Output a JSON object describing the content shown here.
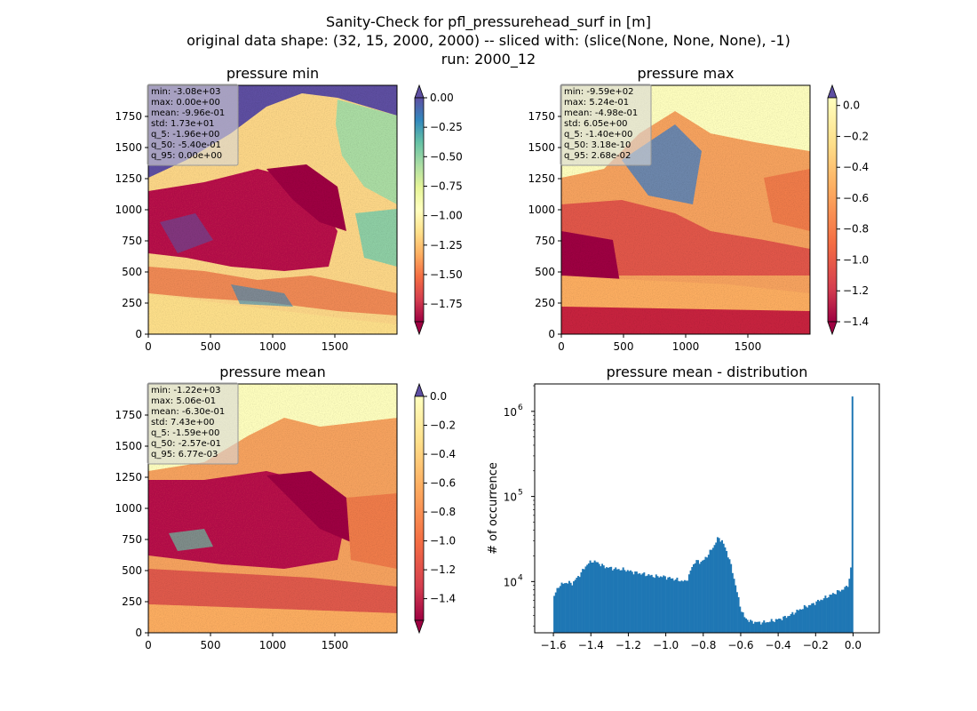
{
  "figure": {
    "title_lines": [
      "Sanity-Check for pfl_pressurehead_surf in [m]",
      "original data shape: (32, 15, 2000, 2000) -- sliced with: (slice(None, None, None), -1)",
      "run: 2000_12"
    ]
  },
  "chart_data": [
    {
      "type": "heatmap",
      "title": "pressure min",
      "x_ticks": [
        0,
        500,
        1000,
        1500
      ],
      "y_ticks": [
        0,
        250,
        500,
        750,
        1000,
        1250,
        1500,
        1750
      ],
      "xlim": [
        0,
        2000
      ],
      "ylim": [
        0,
        2000
      ],
      "colormap": "Spectral",
      "colorbar": {
        "range": [
          -1.9,
          0.0
        ],
        "ticks": [
          "0.00",
          "−0.25",
          "−0.50",
          "−0.75",
          "−1.00",
          "−1.25",
          "−1.50",
          "−1.75"
        ],
        "extend": "both"
      },
      "stats": [
        "min: -3.08e+03",
        "max: 0.00e+00",
        "mean: -9.96e-01",
        "std: 1.73e+01",
        "q_5: -1.96e+00",
        "q_50: -5.40e-01",
        "q_95: 0.00e+00"
      ]
    },
    {
      "type": "heatmap",
      "title": "pressure max",
      "x_ticks": [
        0,
        500,
        1000,
        1500
      ],
      "y_ticks": [
        0,
        250,
        500,
        750,
        1000,
        1250,
        1500,
        1750
      ],
      "xlim": [
        0,
        2000
      ],
      "ylim": [
        0,
        2000
      ],
      "colormap": "Spectral",
      "colorbar": {
        "range": [
          -1.4,
          0.05
        ],
        "ticks": [
          "0.0",
          "−0.2",
          "−0.4",
          "−0.6",
          "−0.8",
          "−1.0",
          "−1.2",
          "−1.4"
        ],
        "extend": "both"
      },
      "stats": [
        "min: -9.59e+02",
        "max: 5.24e-01",
        "mean: -4.98e-01",
        "std: 6.05e+00",
        "q_5: -1.40e+00",
        "q_50: 3.18e-10",
        "q_95: 2.68e-02"
      ]
    },
    {
      "type": "heatmap",
      "title": "pressure mean",
      "x_ticks": [
        0,
        500,
        1000,
        1500
      ],
      "y_ticks": [
        0,
        250,
        500,
        750,
        1000,
        1250,
        1500,
        1750
      ],
      "xlim": [
        0,
        2000
      ],
      "ylim": [
        0,
        2000
      ],
      "colormap": "Spectral",
      "colorbar": {
        "range": [
          -1.55,
          0.0
        ],
        "ticks": [
          "0.0",
          "−0.2",
          "−0.4",
          "−0.6",
          "−0.8",
          "−1.0",
          "−1.2",
          "−1.4"
        ],
        "extend": "both"
      },
      "stats": [
        "min: -1.22e+03",
        "max: 5.06e-01",
        "mean: -6.30e-01",
        "std: 7.43e+00",
        "q_5: -1.59e+00",
        "q_50: -2.57e-01",
        "q_95: 6.77e-03"
      ]
    },
    {
      "type": "bar",
      "title": "pressure mean - distribution",
      "ylabel": "# of occurrence",
      "y_scale": "log",
      "x_ticks": [
        "−1.6",
        "−1.4",
        "−1.2",
        "−1.0",
        "−0.8",
        "−0.6",
        "−0.4",
        "−0.2",
        "0.0"
      ],
      "x_tick_values": [
        -1.6,
        -1.4,
        -1.2,
        -1.0,
        -0.8,
        -0.6,
        -0.4,
        -0.2,
        0.0
      ],
      "y_tick_exponents": [
        "4",
        "5",
        "6"
      ],
      "y_tick_values": [
        10000,
        100000,
        1000000
      ],
      "xlim": [
        -1.7,
        0.14
      ],
      "ylim": [
        2500,
        2100000
      ],
      "color": "#1f77b4",
      "series_profile": [
        [
          -1.6,
          6500
        ],
        [
          -1.57,
          9000
        ],
        [
          -1.53,
          9800
        ],
        [
          -1.5,
          9500
        ],
        [
          -1.46,
          12000
        ],
        [
          -1.42,
          16000
        ],
        [
          -1.39,
          17500
        ],
        [
          -1.36,
          16500
        ],
        [
          -1.33,
          15000
        ],
        [
          -1.3,
          14500
        ],
        [
          -1.26,
          14000
        ],
        [
          -1.22,
          13800
        ],
        [
          -1.18,
          13000
        ],
        [
          -1.14,
          12500
        ],
        [
          -1.1,
          12000
        ],
        [
          -1.06,
          11500
        ],
        [
          -1.02,
          11500
        ],
        [
          -0.98,
          11000
        ],
        [
          -0.94,
          10500
        ],
        [
          -0.9,
          10000
        ],
        [
          -0.88,
          11000
        ],
        [
          -0.86,
          15000
        ],
        [
          -0.84,
          17500
        ],
        [
          -0.82,
          17000
        ],
        [
          -0.8,
          17500
        ],
        [
          -0.78,
          20000
        ],
        [
          -0.76,
          23000
        ],
        [
          -0.74,
          27000
        ],
        [
          -0.72,
          33000
        ],
        [
          -0.7,
          30000
        ],
        [
          -0.68,
          24000
        ],
        [
          -0.66,
          18000
        ],
        [
          -0.64,
          12000
        ],
        [
          -0.62,
          7500
        ],
        [
          -0.6,
          4800
        ],
        [
          -0.58,
          3800
        ],
        [
          -0.55,
          3400
        ],
        [
          -0.5,
          3300
        ],
        [
          -0.46,
          3350
        ],
        [
          -0.42,
          3500
        ],
        [
          -0.38,
          3700
        ],
        [
          -0.34,
          4000
        ],
        [
          -0.3,
          4500
        ],
        [
          -0.26,
          5000
        ],
        [
          -0.22,
          5400
        ],
        [
          -0.18,
          6000
        ],
        [
          -0.14,
          6600
        ],
        [
          -0.1,
          7300
        ],
        [
          -0.06,
          8000
        ],
        [
          -0.03,
          8800
        ],
        [
          -0.015,
          12000
        ],
        [
          -0.006,
          20000
        ],
        [
          -0.003,
          32000
        ],
        [
          0.0,
          1500000
        ]
      ]
    }
  ]
}
